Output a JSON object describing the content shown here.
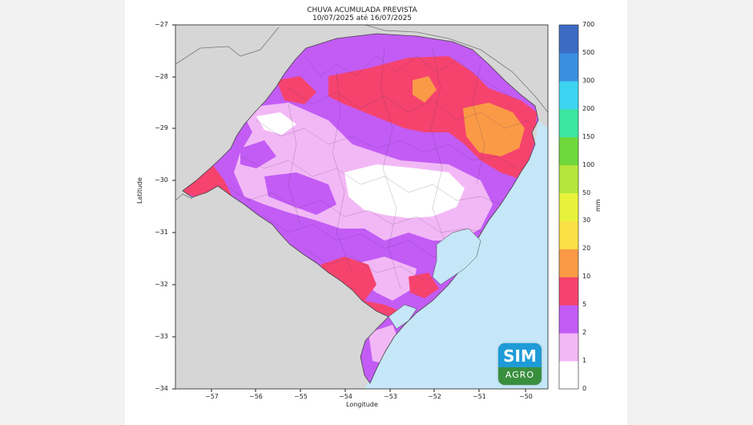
{
  "title": "CHUVA ACUMULADA PREVISTA",
  "subtitle": "10/07/2025 até 16/07/2025",
  "x_axis": {
    "label": "Longitude",
    "ticks": [
      "−57",
      "−56",
      "−55",
      "−54",
      "−53",
      "−52",
      "−51",
      "−50"
    ]
  },
  "y_axis": {
    "label": "Latitude",
    "ticks": [
      "−27",
      "−28",
      "−29",
      "−30",
      "−31",
      "−32",
      "−33",
      "−34"
    ]
  },
  "colorbar": {
    "unit": "mm",
    "ticks": [
      "0",
      "1",
      "2",
      "5",
      "10",
      "20",
      "30",
      "50",
      "100",
      "150",
      "200",
      "300",
      "500",
      "700"
    ],
    "colors": [
      "#ffffff",
      "#f2b8f5",
      "#c25cf5",
      "#f5436e",
      "#fa9a46",
      "#fbe046",
      "#e8f23c",
      "#b4e63c",
      "#6fd83c",
      "#3ce6a0",
      "#3cd4f0",
      "#3c8fe0",
      "#3c6bc4",
      "#3c4ea8"
    ]
  },
  "map": {
    "ocean_color": "#c5e7f7",
    "neighbor_color": "#d6d6d6"
  },
  "logo": {
    "line1": "SIM",
    "line2": "AGRO"
  }
}
